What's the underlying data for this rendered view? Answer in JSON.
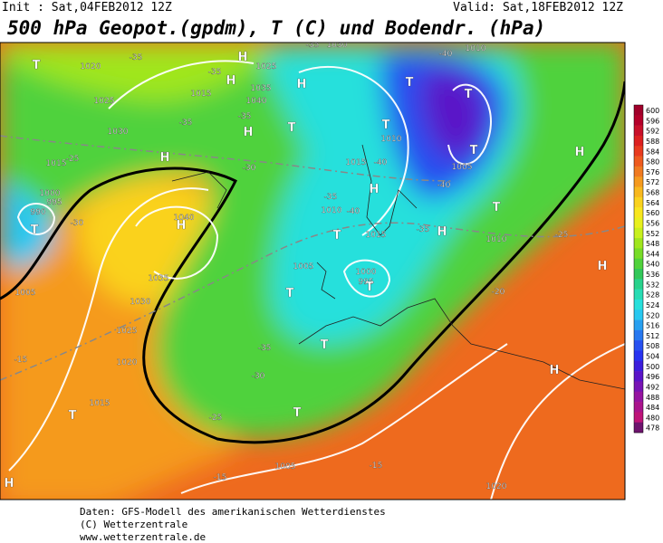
{
  "header": {
    "init": "Init : Sat,04FEB2012 12Z",
    "valid": "Valid: Sat,18FEB2012 12Z",
    "title": "500 hPa Geopot.(gpdm), T (C) und Bodendr. (hPa)"
  },
  "colorbar": {
    "labels": [
      "600",
      "596",
      "592",
      "588",
      "584",
      "580",
      "576",
      "572",
      "568",
      "564",
      "560",
      "556",
      "552",
      "548",
      "544",
      "540",
      "536",
      "532",
      "528",
      "524",
      "520",
      "516",
      "512",
      "508",
      "504",
      "500",
      "496",
      "492",
      "488",
      "484",
      "480",
      "478"
    ],
    "colors": [
      "#a0002a",
      "#b4002a",
      "#c8102a",
      "#dc2020",
      "#e83a1e",
      "#ee5a1e",
      "#f07a20",
      "#f59a1e",
      "#f8b81e",
      "#fad21e",
      "#f8e61e",
      "#e8f01e",
      "#c8f01e",
      "#a0e61e",
      "#78dc28",
      "#50d23c",
      "#32c85a",
      "#28d28c",
      "#28dcb4",
      "#28e0dc",
      "#28c8f0",
      "#28a0f0",
      "#2878f0",
      "#2850f0",
      "#2832f0",
      "#3c1edc",
      "#5a14c8",
      "#7814b4",
      "#9614a0",
      "#aa148c",
      "#be1478",
      "#6e146e"
    ]
  },
  "map": {
    "labels": [
      "-35",
      "1020",
      "-35",
      "H",
      "1025",
      "1030",
      "-35",
      "1035",
      "1015",
      "1025",
      "1040",
      "H",
      "H",
      "-35",
      "-35",
      "1030",
      "T",
      "H",
      "-30",
      "H",
      "-25",
      "1015",
      "1000",
      "995",
      "990",
      "T",
      "-30",
      "1040",
      "H",
      "1035",
      "1030",
      "1005",
      "1025",
      "1020",
      "-15",
      "T",
      "1015",
      "-30",
      "-35",
      "1005",
      "T",
      "T",
      "1000",
      "995",
      "T",
      "T",
      "T",
      "-25",
      "-15",
      "1005",
      "-15",
      "H",
      "1020",
      "H",
      "H",
      "-20",
      "-25",
      "1010",
      "T",
      "H",
      "-35",
      "-40",
      "1005",
      "T",
      "T",
      "-40",
      "1010",
      "T",
      "1010",
      "1015",
      "-40",
      "H",
      "-35",
      "1010",
      "-40",
      "1015",
      "T",
      "H",
      "T"
    ]
  },
  "footer": {
    "lines": [
      "Daten: GFS-Modell des amerikanischen Wetterdienstes",
      "(C) Wetterzentrale",
      "www.wetterzentrale.de"
    ]
  }
}
